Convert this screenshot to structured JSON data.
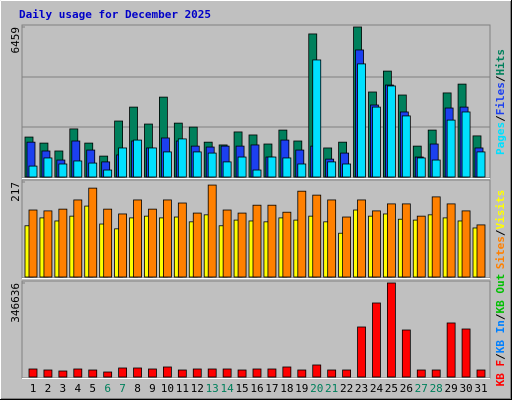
{
  "chart_data": [
    {
      "type": "bar",
      "title": "Daily usage for December 2025",
      "categories": [
        "1",
        "2",
        "3",
        "4",
        "5",
        "6",
        "7",
        "8",
        "9",
        "10",
        "11",
        "12",
        "13",
        "14",
        "15",
        "16",
        "17",
        "18",
        "19",
        "20",
        "21",
        "22",
        "23",
        "24",
        "25",
        "26",
        "27",
        "28",
        "29",
        "30",
        "31"
      ],
      "category_colors": [
        "#000000",
        "#000000",
        "#000000",
        "#000000",
        "#000000",
        "#00805c",
        "#00805c",
        "#000000",
        "#000000",
        "#000000",
        "#000000",
        "#000000",
        "#00805c",
        "#00805c",
        "#000000",
        "#000000",
        "#000000",
        "#000000",
        "#000000",
        "#00805c",
        "#00805c",
        "#000000",
        "#000000",
        "#000000",
        "#000000",
        "#000000",
        "#00805c",
        "#00805c",
        "#000000",
        "#000000",
        "#000000"
      ],
      "ylim": [
        0,
        6459
      ],
      "yticks": [
        6459
      ],
      "grid": true,
      "legend_separator": "/",
      "series": [
        {
          "name": "Hits",
          "color": "#00805c",
          "values": [
            1720,
            1460,
            1120,
            2070,
            1460,
            900,
            2410,
            3010,
            2280,
            3440,
            2320,
            2150,
            1500,
            1380,
            1940,
            1810,
            1420,
            2020,
            1550,
            6160,
            1250,
            1500,
            6459,
            3660,
            4560,
            3530,
            1330,
            2020,
            3620,
            4000,
            1770
          ]
        },
        {
          "name": "Files",
          "color": "#1c40f0",
          "values": [
            1500,
            1120,
            730,
            1550,
            1160,
            650,
            950,
            1550,
            1250,
            1680,
            1550,
            1330,
            1290,
            1330,
            1330,
            1380,
            860,
            1590,
            1160,
            1330,
            770,
            1030,
            5470,
            3100,
            3960,
            2800,
            860,
            1420,
            2970,
            3010,
            1250
          ]
        },
        {
          "name": "Pages",
          "color": "#00e0ff",
          "values": [
            470,
            820,
            560,
            690,
            600,
            300,
            1250,
            1590,
            1250,
            1080,
            1640,
            1080,
            1030,
            650,
            860,
            300,
            860,
            820,
            560,
            5040,
            650,
            560,
            4870,
            3010,
            3920,
            2630,
            820,
            730,
            2450,
            2800,
            1080
          ]
        }
      ]
    },
    {
      "type": "bar",
      "ylim": [
        0,
        217
      ],
      "yticks": [
        217
      ],
      "legend_separator": "/",
      "series": [
        {
          "name": "Visits",
          "color": "#ffff00",
          "values": [
            117,
            135,
            128,
            139,
            162,
            121,
            110,
            135,
            139,
            135,
            137,
            126,
            142,
            117,
            130,
            128,
            126,
            135,
            130,
            139,
            126,
            100,
            153,
            139,
            144,
            132,
            130,
            142,
            135,
            128,
            112
          ]
        },
        {
          "name": "Sites",
          "color": "#ff8000",
          "values": [
            153,
            151,
            155,
            176,
            203,
            155,
            144,
            176,
            155,
            176,
            169,
            146,
            210,
            153,
            146,
            164,
            164,
            148,
            196,
            187,
            176,
            137,
            176,
            151,
            167,
            167,
            139,
            183,
            167,
            151,
            119
          ]
        }
      ]
    },
    {
      "type": "bar",
      "ylim": [
        0,
        346636
      ],
      "yticks": [
        346636
      ],
      "legend_separator": "/",
      "series": [
        {
          "name": "KB Out",
          "color": "#00c000",
          "values": [
            0,
            0,
            0,
            0,
            0,
            0,
            0,
            0,
            0,
            0,
            0,
            0,
            0,
            0,
            0,
            0,
            0,
            0,
            0,
            0,
            0,
            0,
            0,
            0,
            0,
            0,
            0,
            0,
            0,
            0,
            0
          ]
        },
        {
          "name": "KB In",
          "color": "#0080ff",
          "values": [
            0,
            0,
            0,
            0,
            0,
            0,
            0,
            0,
            0,
            0,
            0,
            0,
            0,
            0,
            0,
            0,
            0,
            0,
            0,
            0,
            0,
            0,
            0,
            0,
            0,
            0,
            0,
            0,
            0,
            0,
            0
          ]
        },
        {
          "name": "KB F",
          "color": "#ff0000",
          "values": [
            29500,
            25800,
            22100,
            29500,
            25800,
            18400,
            33200,
            33200,
            29500,
            36900,
            25800,
            29500,
            29500,
            29500,
            25800,
            29500,
            29500,
            36900,
            25800,
            44300,
            25800,
            25800,
            184400,
            272900,
            346636,
            173300,
            25800,
            25800,
            199200,
            177000,
            25800
          ]
        }
      ]
    }
  ]
}
